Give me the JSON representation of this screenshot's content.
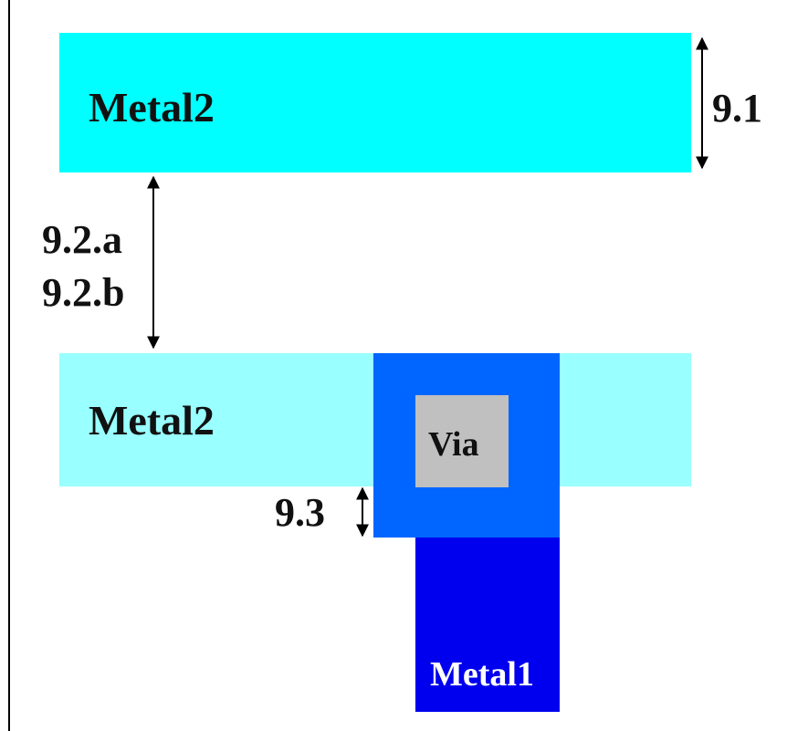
{
  "diagram": {
    "layers": {
      "metal2_top": {
        "label": "Metal2",
        "color": "#00FFFF"
      },
      "metal2_bottom": {
        "label": "Metal2",
        "color": "#99FFFF"
      },
      "via_enclosure": {
        "color": "#0066FF"
      },
      "via": {
        "label": "Via",
        "color": "#C0C0C0"
      },
      "metal1": {
        "label": "Metal1",
        "color": "#0000EE"
      }
    },
    "rules": {
      "r91": "9.1",
      "r92a": "9.2.a",
      "r92b": "9.2.b",
      "r93": "9.3"
    },
    "colors": {
      "arrow": "#000000",
      "border_line": "#000000",
      "text": "#111111",
      "metal1_text": "#FFFFFF"
    }
  }
}
